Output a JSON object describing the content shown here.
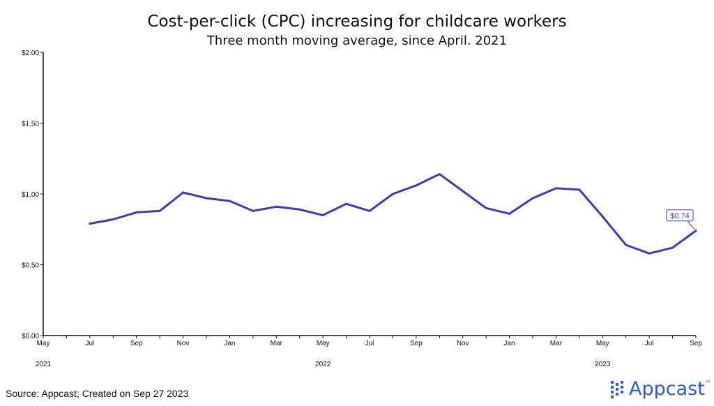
{
  "header": {
    "title": "Cost-per-click (CPC) increasing for childcare workers",
    "subtitle": "Three month moving average, since April. 2021"
  },
  "footer": {
    "source": "Source: Appcast; Created on Sep 27 2023",
    "brand": "Appcast",
    "brand_tm": "™"
  },
  "colors": {
    "line": "#3b3dbf",
    "brand": "#2d5bd8",
    "axis": "#111111"
  },
  "chart_data": {
    "type": "line",
    "title": "Cost-per-click (CPC) increasing for childcare workers",
    "subtitle": "Three month moving average, since April. 2021",
    "x": [
      "2021-05",
      "2021-06",
      "2021-07",
      "2021-08",
      "2021-09",
      "2021-10",
      "2021-11",
      "2021-12",
      "2022-01",
      "2022-02",
      "2022-03",
      "2022-04",
      "2022-05",
      "2022-06",
      "2022-07",
      "2022-08",
      "2022-09",
      "2022-10",
      "2022-11",
      "2022-12",
      "2023-01",
      "2023-02",
      "2023-03",
      "2023-04",
      "2023-05",
      "2023-06",
      "2023-07",
      "2023-08",
      "2023-09"
    ],
    "series": [
      {
        "values": [
          null,
          null,
          0.79,
          0.82,
          0.87,
          0.88,
          1.01,
          0.97,
          0.95,
          0.88,
          0.91,
          0.89,
          0.85,
          0.93,
          0.88,
          1.0,
          1.06,
          1.14,
          1.02,
          0.9,
          0.86,
          0.97,
          1.04,
          1.03,
          0.84,
          0.64,
          0.58,
          0.62,
          0.74
        ]
      }
    ],
    "y_ticks": [
      0,
      0.5,
      1.0,
      1.5,
      2.0
    ],
    "y_tick_labels": [
      "$0.00",
      "$0.50",
      "$1.00",
      "$1.50",
      "$2.00"
    ],
    "ylim": [
      0,
      2
    ],
    "x_tick_labels": [
      "May",
      "Jul",
      "Sep",
      "Nov",
      "Jan",
      "Mar",
      "May",
      "Jul",
      "Sep",
      "Nov",
      "Jan",
      "Mar",
      "May",
      "Jul",
      "Sep"
    ],
    "x_tick_months": [
      "2021-05",
      "2021-07",
      "2021-09",
      "2021-11",
      "2022-01",
      "2022-03",
      "2022-05",
      "2022-07",
      "2022-09",
      "2022-11",
      "2023-01",
      "2023-03",
      "2023-05",
      "2023-07",
      "2023-09"
    ],
    "year_labels": [
      {
        "month": "2021-05",
        "label": "2021"
      },
      {
        "month": "2022-05",
        "label": "2022"
      },
      {
        "month": "2023-05",
        "label": "2023"
      }
    ],
    "annotation": {
      "month": "2023-09",
      "text": "$0.74"
    },
    "xlabel": "",
    "ylabel": "",
    "grid": false
  }
}
